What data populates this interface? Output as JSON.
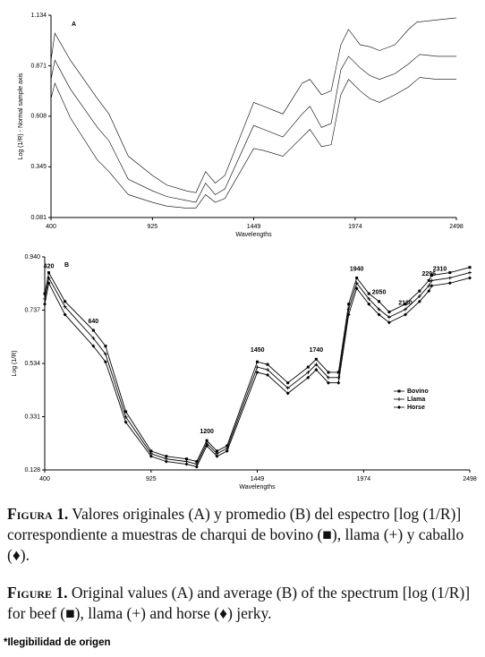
{
  "chart_data": [
    {
      "type": "line",
      "title": "A",
      "x_label": "Wavelengths",
      "y_label": "Log (1/R) - Normal sample axis",
      "xlim": [
        400,
        2498
      ],
      "xticks": [
        400,
        925,
        1449,
        1974,
        2498
      ],
      "ylim": [
        0.081,
        1.134
      ],
      "yticks": [
        0.081,
        0.345,
        0.608,
        0.871,
        1.134
      ],
      "x": [
        400,
        420,
        500,
        640,
        700,
        800,
        925,
        1000,
        1100,
        1150,
        1200,
        1250,
        1300,
        1449,
        1500,
        1600,
        1700,
        1740,
        1800,
        1850,
        1900,
        1940,
        2000,
        2050,
        2100,
        2180,
        2250,
        2296,
        2310,
        2400,
        2498
      ],
      "series": [
        {
          "color": "#000000",
          "values": [
            0.9,
            1.04,
            0.9,
            0.7,
            0.62,
            0.4,
            0.3,
            0.25,
            0.22,
            0.21,
            0.32,
            0.26,
            0.3,
            0.68,
            0.66,
            0.62,
            0.78,
            0.8,
            0.72,
            0.74,
            0.98,
            1.06,
            0.98,
            0.97,
            0.95,
            0.98,
            1.06,
            1.1,
            1.1,
            1.11,
            1.12
          ]
        },
        {
          "color": "#000000",
          "values": [
            0.8,
            0.9,
            0.75,
            0.55,
            0.48,
            0.28,
            0.22,
            0.19,
            0.17,
            0.16,
            0.26,
            0.2,
            0.23,
            0.56,
            0.54,
            0.5,
            0.62,
            0.66,
            0.55,
            0.57,
            0.85,
            0.92,
            0.86,
            0.82,
            0.8,
            0.83,
            0.88,
            0.92,
            0.93,
            0.92,
            0.92
          ]
        },
        {
          "color": "#000000",
          "values": [
            0.7,
            0.78,
            0.6,
            0.38,
            0.32,
            0.2,
            0.16,
            0.14,
            0.13,
            0.13,
            0.2,
            0.16,
            0.18,
            0.44,
            0.43,
            0.4,
            0.5,
            0.54,
            0.45,
            0.46,
            0.72,
            0.8,
            0.74,
            0.7,
            0.68,
            0.72,
            0.76,
            0.8,
            0.81,
            0.8,
            0.8
          ]
        }
      ]
    },
    {
      "type": "line",
      "title": "B",
      "x_label": "Wavelengths",
      "y_label": "Log (1/R)",
      "legend": "right",
      "xlim": [
        400,
        2498
      ],
      "xticks": [
        400,
        925,
        1449,
        1974,
        2498
      ],
      "ylim": [
        0.128,
        0.94
      ],
      "yticks": [
        0.128,
        0.331,
        0.534,
        0.737,
        {
          "value": 0.94,
          "label": "0.940"
        }
      ],
      "x": [
        400,
        420,
        500,
        640,
        700,
        800,
        925,
        1000,
        1100,
        1150,
        1200,
        1250,
        1300,
        1449,
        1500,
        1600,
        1700,
        1740,
        1800,
        1850,
        1900,
        1940,
        2000,
        2050,
        2100,
        2180,
        2250,
        2296,
        2310,
        2400,
        2498
      ],
      "series": [
        {
          "name": "Bovino",
          "color": "#000000",
          "marker": "square",
          "values": [
            0.8,
            0.88,
            0.77,
            0.66,
            0.6,
            0.35,
            0.2,
            0.18,
            0.17,
            0.16,
            0.24,
            0.2,
            0.22,
            0.54,
            0.53,
            0.46,
            0.52,
            0.55,
            0.5,
            0.5,
            0.76,
            0.86,
            0.8,
            0.77,
            0.73,
            0.76,
            0.81,
            0.85,
            0.87,
            0.88,
            0.9
          ]
        },
        {
          "name": "Llama",
          "color": "#000000",
          "marker": "plus",
          "values": [
            0.78,
            0.86,
            0.75,
            0.63,
            0.57,
            0.33,
            0.19,
            0.17,
            0.16,
            0.15,
            0.23,
            0.19,
            0.21,
            0.52,
            0.51,
            0.44,
            0.5,
            0.53,
            0.48,
            0.48,
            0.74,
            0.84,
            0.78,
            0.74,
            0.71,
            0.74,
            0.79,
            0.83,
            0.85,
            0.86,
            0.88
          ]
        },
        {
          "name": "Horse",
          "color": "#000000",
          "marker": "diamond",
          "values": [
            0.76,
            0.84,
            0.72,
            0.6,
            0.54,
            0.31,
            0.18,
            0.16,
            0.15,
            0.14,
            0.22,
            0.18,
            0.2,
            0.5,
            0.49,
            0.42,
            0.48,
            0.51,
            0.46,
            0.46,
            0.72,
            0.82,
            0.76,
            0.72,
            0.69,
            0.72,
            0.77,
            0.81,
            0.83,
            0.84,
            0.86
          ]
        }
      ],
      "annotations": [
        {
          "text": "420",
          "x": 420,
          "y": 0.88
        },
        {
          "text": "640",
          "x": 640,
          "y": 0.67
        },
        {
          "text": "1200",
          "x": 1200,
          "y": 0.25
        },
        {
          "text": "1450",
          "x": 1450,
          "y": 0.56
        },
        {
          "text": "1740",
          "x": 1740,
          "y": 0.56
        },
        {
          "text": "1940",
          "x": 1940,
          "y": 0.87
        },
        {
          "text": "2050",
          "x": 2050,
          "y": 0.78
        },
        {
          "text": "2180",
          "x": 2180,
          "y": 0.74
        },
        {
          "text": "2296",
          "x": 2296,
          "y": 0.85
        },
        {
          "text": "2310",
          "x": 2350,
          "y": 0.87
        }
      ]
    }
  ],
  "caption_es": {
    "label": "Figura 1.",
    "text": "Valores originales (A) y promedio (B) del espectro [log (1/R)] correspondiente a muestras de charqui de bovino (■), llama (+) y caballo (♦)."
  },
  "caption_en": {
    "label": "Figure 1.",
    "text": "Original values (A) and average (B) of the spectrum [log (1/R)] for beef (■), llama (+) and horse (♦) jerky."
  },
  "footnote": "*Ilegibilidad de origen"
}
